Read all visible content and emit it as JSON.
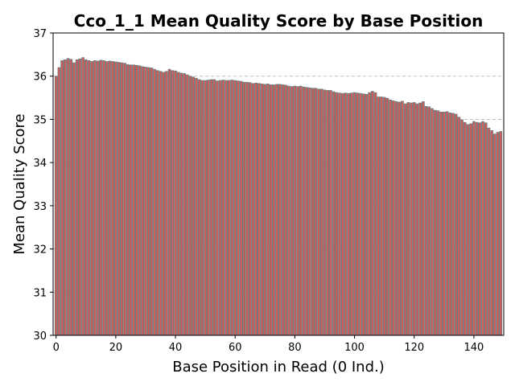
{
  "chart_data": {
    "type": "bar",
    "title": "Cco_1_1 Mean Quality Score by Base Position",
    "xlabel": "Base Position in Read (0 Ind.)",
    "ylabel": "Mean Quality Score",
    "xlim": [
      -1,
      150
    ],
    "ylim": [
      30,
      37
    ],
    "xticks": [
      0,
      20,
      40,
      60,
      80,
      100,
      120,
      140
    ],
    "yticks": [
      30,
      31,
      32,
      33,
      34,
      35,
      36,
      37
    ],
    "grid": "horizontal dashed",
    "bar_color": "#cd5c5c",
    "bar_edge_color": "#5f7f7f",
    "x": [
      0,
      1,
      2,
      3,
      4,
      5,
      6,
      7,
      8,
      9,
      10,
      11,
      12,
      13,
      14,
      15,
      16,
      17,
      18,
      19,
      20,
      21,
      22,
      23,
      24,
      25,
      26,
      27,
      28,
      29,
      30,
      31,
      32,
      33,
      34,
      35,
      36,
      37,
      38,
      39,
      40,
      41,
      42,
      43,
      44,
      45,
      46,
      47,
      48,
      49,
      50,
      51,
      52,
      53,
      54,
      55,
      56,
      57,
      58,
      59,
      60,
      61,
      62,
      63,
      64,
      65,
      66,
      67,
      68,
      69,
      70,
      71,
      72,
      73,
      74,
      75,
      76,
      77,
      78,
      79,
      80,
      81,
      82,
      83,
      84,
      85,
      86,
      87,
      88,
      89,
      90,
      91,
      92,
      93,
      94,
      95,
      96,
      97,
      98,
      99,
      100,
      101,
      102,
      103,
      104,
      105,
      106,
      107,
      108,
      109,
      110,
      111,
      112,
      113,
      114,
      115,
      116,
      117,
      118,
      119,
      120,
      121,
      122,
      123,
      124,
      125,
      126,
      127,
      128,
      129,
      130,
      131,
      132,
      133,
      134,
      135,
      136,
      137,
      138,
      139,
      140,
      141,
      142,
      143,
      144,
      145,
      146,
      147,
      148,
      149
    ],
    "values": [
      36.0,
      36.2,
      36.36,
      36.38,
      36.41,
      36.39,
      36.31,
      36.38,
      36.4,
      36.43,
      36.38,
      36.36,
      36.34,
      36.36,
      36.35,
      36.37,
      36.36,
      36.34,
      36.35,
      36.34,
      36.33,
      36.32,
      36.31,
      36.3,
      36.27,
      36.26,
      36.26,
      36.25,
      36.24,
      36.22,
      36.21,
      36.2,
      36.19,
      36.16,
      36.13,
      36.11,
      36.09,
      36.11,
      36.16,
      36.13,
      36.12,
      36.09,
      36.07,
      36.06,
      36.03,
      36.0,
      35.98,
      35.95,
      35.92,
      35.9,
      35.9,
      35.91,
      35.92,
      35.92,
      35.89,
      35.9,
      35.91,
      35.9,
      35.9,
      35.91,
      35.9,
      35.89,
      35.88,
      35.86,
      35.86,
      35.85,
      35.83,
      35.84,
      35.83,
      35.82,
      35.81,
      35.82,
      35.8,
      35.8,
      35.81,
      35.81,
      35.8,
      35.79,
      35.77,
      35.76,
      35.77,
      35.76,
      35.77,
      35.75,
      35.74,
      35.73,
      35.72,
      35.72,
      35.7,
      35.7,
      35.68,
      35.67,
      35.67,
      35.64,
      35.62,
      35.61,
      35.6,
      35.61,
      35.6,
      35.61,
      35.62,
      35.61,
      35.6,
      35.59,
      35.58,
      35.62,
      35.65,
      35.62,
      35.52,
      35.52,
      35.51,
      35.49,
      35.45,
      35.43,
      35.41,
      35.4,
      35.42,
      35.36,
      35.39,
      35.38,
      35.39,
      35.36,
      35.38,
      35.41,
      35.3,
      35.29,
      35.25,
      35.21,
      35.2,
      35.17,
      35.17,
      35.18,
      35.15,
      35.14,
      35.12,
      35.05,
      34.99,
      34.93,
      34.88,
      34.9,
      34.95,
      34.93,
      34.92,
      34.95,
      34.92,
      34.8,
      34.74,
      34.66,
      34.7,
      34.72
    ]
  }
}
